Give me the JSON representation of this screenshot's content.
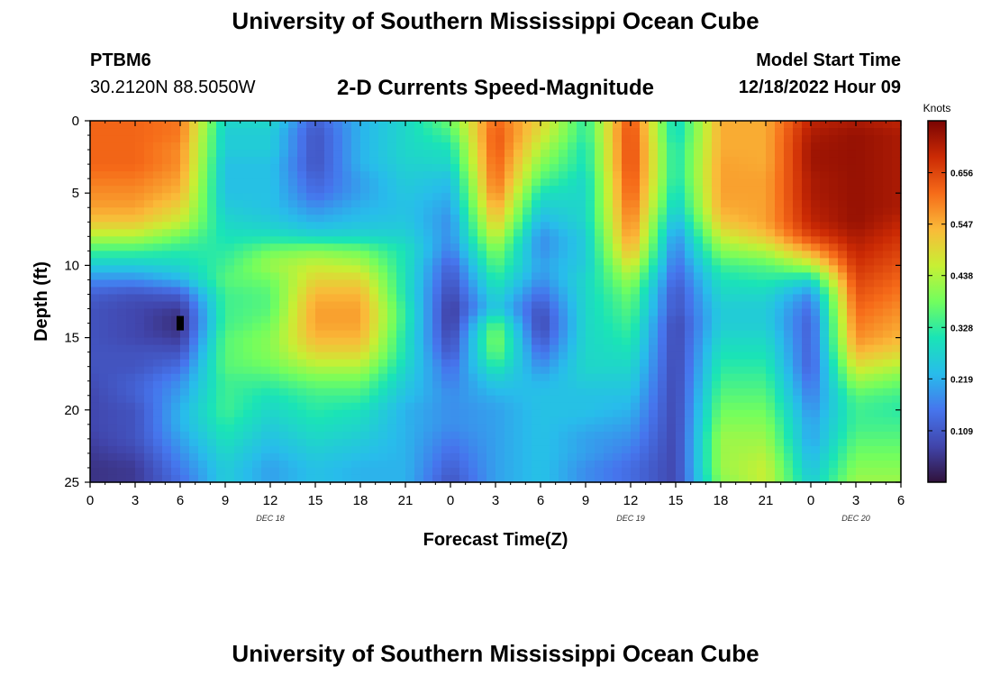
{
  "header": {
    "title": "University of Southern Mississippi Ocean Cube",
    "station_id": "PTBM6",
    "coordinates": "30.2120N  88.5050W",
    "chart_title": "2-D Currents Speed-Magnitude",
    "model_label": "Model Start Time",
    "model_time": "12/18/2022 Hour 09"
  },
  "footer": {
    "title": "University of Southern Mississippi Ocean Cube"
  },
  "chart_data": {
    "type": "heatmap",
    "title": "2-D Currents Speed-Magnitude",
    "xlabel": "Forecast Time(Z)",
    "ylabel": "Depth (ft)",
    "x_range_hours": [
      0,
      54
    ],
    "y_range_ft": [
      0,
      25
    ],
    "y_inverted": true,
    "x_tick_hours": [
      0,
      3,
      6,
      9,
      12,
      15,
      18,
      21,
      24,
      27,
      30,
      33,
      36,
      39,
      42,
      45,
      48,
      51,
      54
    ],
    "x_tick_labels": [
      "0",
      "3",
      "6",
      "9",
      "12",
      "15",
      "18",
      "21",
      "0",
      "3",
      "6",
      "9",
      "12",
      "15",
      "18",
      "21",
      "0",
      "3",
      "6"
    ],
    "y_ticks": [
      0,
      5,
      10,
      15,
      20,
      25
    ],
    "y_tick_labels": [
      "0",
      "5",
      "10",
      "15",
      "20",
      "25"
    ],
    "day_labels": [
      {
        "hour": 12,
        "label": "DEC 18"
      },
      {
        "hour": 36,
        "label": "DEC 19"
      },
      {
        "hour": 51,
        "label": "DEC 20"
      }
    ],
    "colorbar": {
      "label": "Knots",
      "min": 0.0,
      "max": 0.766,
      "ticks": [
        0.109,
        0.219,
        0.328,
        0.438,
        0.547,
        0.656
      ],
      "tick_labels": [
        "0.109",
        "0.219",
        "0.328",
        "0.438",
        "0.547",
        "0.656"
      ]
    },
    "grid": {
      "depths_ft": [
        0,
        1,
        2,
        3,
        4,
        5,
        6,
        7,
        8,
        9,
        10,
        11,
        12,
        13,
        14,
        15,
        16,
        17,
        18,
        19,
        20,
        21,
        22,
        23,
        24,
        25
      ],
      "times_hours": [
        0,
        3,
        6,
        9,
        12,
        15,
        18,
        21,
        24,
        27,
        30,
        33,
        36,
        39,
        42,
        45,
        48,
        51,
        54
      ],
      "speed_knots": [
        [
          0.62,
          0.62,
          0.6,
          0.28,
          0.28,
          0.12,
          0.22,
          0.28,
          0.38,
          0.62,
          0.5,
          0.32,
          0.65,
          0.28,
          0.55,
          0.55,
          0.7,
          0.72,
          0.7
        ],
        [
          0.62,
          0.62,
          0.6,
          0.26,
          0.26,
          0.1,
          0.22,
          0.28,
          0.34,
          0.64,
          0.48,
          0.32,
          0.66,
          0.28,
          0.55,
          0.55,
          0.72,
          0.74,
          0.72
        ],
        [
          0.62,
          0.62,
          0.58,
          0.26,
          0.26,
          0.1,
          0.22,
          0.28,
          0.3,
          0.64,
          0.44,
          0.3,
          0.66,
          0.3,
          0.55,
          0.55,
          0.73,
          0.74,
          0.72
        ],
        [
          0.62,
          0.62,
          0.58,
          0.24,
          0.24,
          0.1,
          0.22,
          0.27,
          0.28,
          0.63,
          0.4,
          0.3,
          0.66,
          0.3,
          0.56,
          0.55,
          0.73,
          0.74,
          0.72
        ],
        [
          0.6,
          0.6,
          0.56,
          0.24,
          0.24,
          0.12,
          0.2,
          0.26,
          0.24,
          0.62,
          0.36,
          0.28,
          0.65,
          0.3,
          0.56,
          0.56,
          0.72,
          0.74,
          0.72
        ],
        [
          0.58,
          0.58,
          0.54,
          0.24,
          0.24,
          0.14,
          0.2,
          0.25,
          0.22,
          0.6,
          0.3,
          0.28,
          0.64,
          0.28,
          0.56,
          0.56,
          0.72,
          0.74,
          0.72
        ],
        [
          0.56,
          0.56,
          0.5,
          0.26,
          0.24,
          0.18,
          0.22,
          0.24,
          0.2,
          0.56,
          0.26,
          0.28,
          0.62,
          0.26,
          0.55,
          0.56,
          0.71,
          0.74,
          0.72
        ],
        [
          0.52,
          0.52,
          0.46,
          0.28,
          0.26,
          0.22,
          0.24,
          0.25,
          0.18,
          0.52,
          0.22,
          0.28,
          0.6,
          0.22,
          0.52,
          0.56,
          0.7,
          0.74,
          0.7
        ],
        [
          0.44,
          0.44,
          0.38,
          0.3,
          0.3,
          0.28,
          0.28,
          0.27,
          0.18,
          0.46,
          0.18,
          0.26,
          0.58,
          0.18,
          0.46,
          0.52,
          0.66,
          0.72,
          0.68
        ],
        [
          0.34,
          0.34,
          0.32,
          0.32,
          0.38,
          0.4,
          0.38,
          0.3,
          0.16,
          0.4,
          0.18,
          0.26,
          0.54,
          0.16,
          0.4,
          0.44,
          0.56,
          0.7,
          0.66
        ],
        [
          0.26,
          0.26,
          0.28,
          0.34,
          0.42,
          0.46,
          0.44,
          0.3,
          0.12,
          0.36,
          0.2,
          0.26,
          0.48,
          0.14,
          0.34,
          0.36,
          0.44,
          0.68,
          0.64
        ],
        [
          0.18,
          0.18,
          0.22,
          0.36,
          0.38,
          0.5,
          0.5,
          0.3,
          0.1,
          0.32,
          0.18,
          0.28,
          0.42,
          0.12,
          0.3,
          0.32,
          0.28,
          0.66,
          0.62
        ],
        [
          0.12,
          0.1,
          0.12,
          0.34,
          0.36,
          0.54,
          0.54,
          0.3,
          0.08,
          0.28,
          0.14,
          0.28,
          0.38,
          0.1,
          0.28,
          0.28,
          0.18,
          0.64,
          0.6
        ],
        [
          0.1,
          0.08,
          0.06,
          0.34,
          0.36,
          0.56,
          0.56,
          0.32,
          0.06,
          0.26,
          0.1,
          0.28,
          0.36,
          0.1,
          0.26,
          0.26,
          0.14,
          0.62,
          0.58
        ],
        [
          0.1,
          0.08,
          0.04,
          0.34,
          0.38,
          0.56,
          0.56,
          0.32,
          0.06,
          0.36,
          0.08,
          0.28,
          0.34,
          0.08,
          0.26,
          0.26,
          0.12,
          0.6,
          0.56
        ],
        [
          0.1,
          0.08,
          0.06,
          0.36,
          0.4,
          0.54,
          0.54,
          0.3,
          0.08,
          0.4,
          0.1,
          0.28,
          0.32,
          0.08,
          0.28,
          0.28,
          0.12,
          0.58,
          0.54
        ],
        [
          0.1,
          0.1,
          0.1,
          0.36,
          0.4,
          0.5,
          0.5,
          0.3,
          0.1,
          0.38,
          0.14,
          0.28,
          0.3,
          0.08,
          0.3,
          0.3,
          0.12,
          0.54,
          0.5
        ],
        [
          0.1,
          0.1,
          0.14,
          0.36,
          0.38,
          0.44,
          0.44,
          0.28,
          0.14,
          0.32,
          0.18,
          0.28,
          0.28,
          0.08,
          0.32,
          0.32,
          0.12,
          0.48,
          0.44
        ],
        [
          0.09,
          0.12,
          0.18,
          0.34,
          0.34,
          0.38,
          0.38,
          0.26,
          0.16,
          0.26,
          0.22,
          0.26,
          0.26,
          0.08,
          0.34,
          0.34,
          0.14,
          0.42,
          0.38
        ],
        [
          0.08,
          0.12,
          0.2,
          0.34,
          0.3,
          0.34,
          0.34,
          0.24,
          0.18,
          0.22,
          0.24,
          0.24,
          0.24,
          0.08,
          0.36,
          0.36,
          0.16,
          0.36,
          0.34
        ],
        [
          0.08,
          0.1,
          0.22,
          0.34,
          0.28,
          0.32,
          0.3,
          0.22,
          0.18,
          0.2,
          0.24,
          0.24,
          0.22,
          0.08,
          0.38,
          0.38,
          0.18,
          0.34,
          0.32
        ],
        [
          0.08,
          0.1,
          0.22,
          0.32,
          0.26,
          0.3,
          0.28,
          0.22,
          0.18,
          0.2,
          0.24,
          0.22,
          0.2,
          0.08,
          0.4,
          0.4,
          0.2,
          0.34,
          0.34
        ],
        [
          0.07,
          0.1,
          0.2,
          0.3,
          0.24,
          0.28,
          0.26,
          0.22,
          0.16,
          0.2,
          0.24,
          0.2,
          0.18,
          0.08,
          0.42,
          0.42,
          0.2,
          0.36,
          0.36
        ],
        [
          0.06,
          0.08,
          0.18,
          0.28,
          0.22,
          0.26,
          0.24,
          0.22,
          0.14,
          0.2,
          0.24,
          0.2,
          0.16,
          0.08,
          0.42,
          0.44,
          0.22,
          0.38,
          0.38
        ],
        [
          0.05,
          0.06,
          0.16,
          0.26,
          0.2,
          0.24,
          0.22,
          0.22,
          0.12,
          0.2,
          0.24,
          0.18,
          0.14,
          0.08,
          0.42,
          0.46,
          0.24,
          0.4,
          0.4
        ],
        [
          0.05,
          0.06,
          0.14,
          0.26,
          0.2,
          0.24,
          0.22,
          0.22,
          0.1,
          0.2,
          0.24,
          0.18,
          0.14,
          0.08,
          0.4,
          0.46,
          0.26,
          0.42,
          0.42
        ]
      ],
      "marker": {
        "hour": 6,
        "depth_ft": 14,
        "color": "#000000"
      }
    }
  }
}
